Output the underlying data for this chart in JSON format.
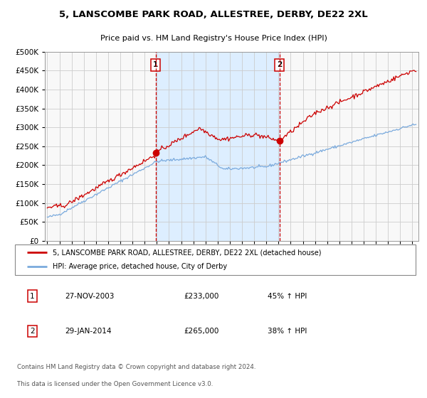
{
  "title": "5, LANSCOMBE PARK ROAD, ALLESTREE, DERBY, DE22 2XL",
  "subtitle": "Price paid vs. HM Land Registry's House Price Index (HPI)",
  "legend_line1": "5, LANSCOMBE PARK ROAD, ALLESTREE, DERBY, DE22 2XL (detached house)",
  "legend_line2": "HPI: Average price, detached house, City of Derby",
  "annotation1_date": "27-NOV-2003",
  "annotation1_price": "£233,000",
  "annotation1_hpi": "45% ↑ HPI",
  "annotation2_date": "29-JAN-2014",
  "annotation2_price": "£265,000",
  "annotation2_hpi": "38% ↑ HPI",
  "footnote1": "Contains HM Land Registry data © Crown copyright and database right 2024.",
  "footnote2": "This data is licensed under the Open Government Licence v3.0.",
  "purchase1_year": 2003.9,
  "purchase1_value": 233000,
  "purchase2_year": 2014.08,
  "purchase2_value": 265000,
  "hpi_color": "#7aaadd",
  "price_color": "#cc0000",
  "bg_highlight_color": "#ddeeff",
  "dashed_line_color": "#cc0000",
  "grid_color": "#cccccc",
  "plot_bg_color": "#f8f8f8",
  "ylim_max": 500000,
  "xlim_start": 1994.8,
  "xlim_end": 2025.5
}
